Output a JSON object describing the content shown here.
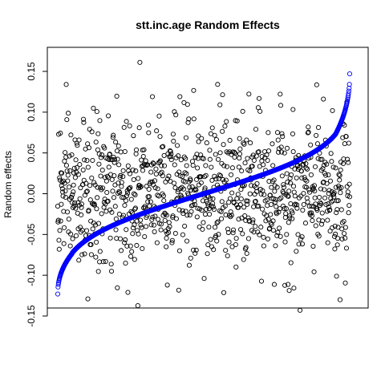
{
  "chart_data": {
    "type": "scatter",
    "title": "stt.inc.age Random Effects",
    "ylabel": "Random effects",
    "xlabel": "",
    "ylim": [
      -0.15,
      0.15
    ],
    "yticks": [
      "-0.15",
      "-0.10",
      "-0.05",
      "0.00",
      "0.05",
      "0.10",
      "0.15"
    ],
    "xticks_visible": false,
    "n_points": 1000,
    "series": [
      {
        "kind": "random",
        "color": "#000000",
        "marker": "open-circle",
        "distribution": "approx. normal, mean 0.00, sd 0.045",
        "notable_values": [
          0.161,
          0.119,
          0.109,
          0.101,
          -0.143,
          -0.13,
          -0.129,
          -0.121
        ]
      },
      {
        "kind": "sorted",
        "color": "#0000ff",
        "marker": "open-circle",
        "min": -0.123,
        "max": 0.147,
        "quantiles": {
          "0.00": -0.123,
          "0.05": -0.073,
          "0.25": -0.03,
          "0.50": 0.0,
          "0.75": 0.03,
          "0.95": 0.072,
          "1.00": 0.147
        }
      }
    ]
  }
}
